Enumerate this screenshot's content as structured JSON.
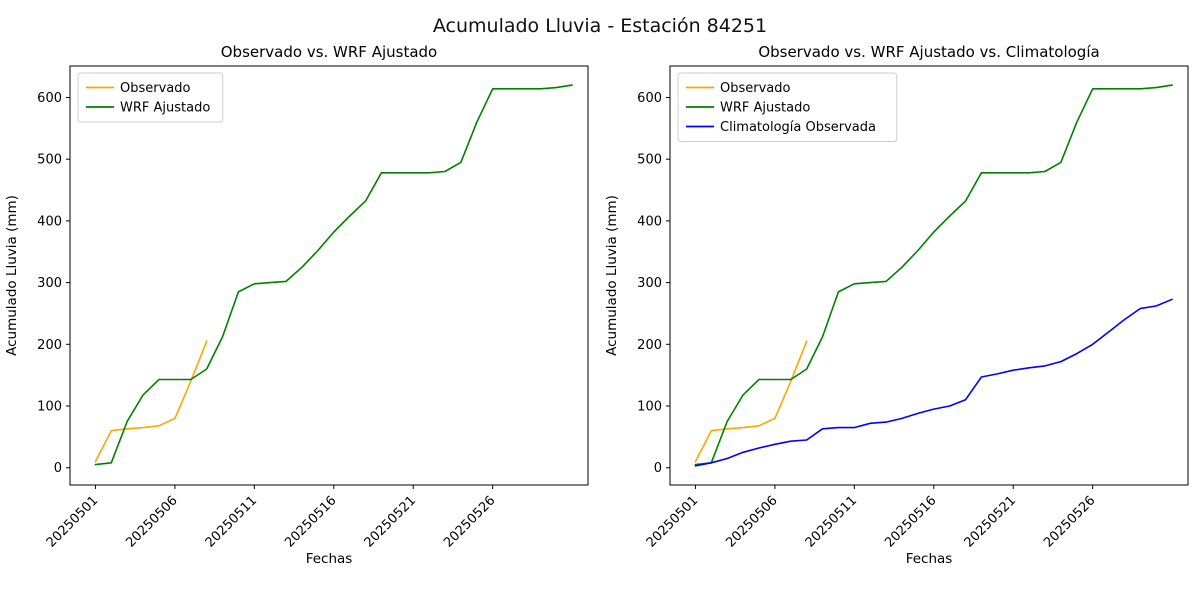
{
  "figure": {
    "title": "Acumulado Lluvia - Estación 84251",
    "background": "#ffffff",
    "text_color": "#000000"
  },
  "chart_data": [
    {
      "type": "line",
      "title": "Observado vs. WRF Ajustado",
      "xlabel": "Fechas",
      "ylabel": "Acumulado Lluvia (mm)",
      "xlim": [
        -0.6,
        32.0
      ],
      "ylim": [
        -28,
        651
      ],
      "yticks": [
        0,
        100,
        200,
        300,
        400,
        500,
        600
      ],
      "xticks": [
        "20250501",
        "20250506",
        "20250511",
        "20250516",
        "20250521",
        "20250526"
      ],
      "grid": false,
      "legend_position": "upper-left",
      "series": [
        {
          "name": "Observado",
          "color": "#ffa500",
          "dates": [
            "20250501",
            "20250502",
            "20250503",
            "20250504",
            "20250505",
            "20250506",
            "20250507",
            "20250508"
          ],
          "values": [
            10,
            60,
            63,
            65,
            68,
            80,
            140,
            205
          ]
        },
        {
          "name": "WRF Ajustado",
          "color": "#008000",
          "dates": [
            "20250501",
            "20250502",
            "20250503",
            "20250504",
            "20250505",
            "20250506",
            "20250507",
            "20250508",
            "20250509",
            "20250510",
            "20250511",
            "20250512",
            "20250513",
            "20250514",
            "20250515",
            "20250516",
            "20250517",
            "20250518",
            "20250519",
            "20250520",
            "20250521",
            "20250522",
            "20250523",
            "20250524",
            "20250525",
            "20250526",
            "20250527",
            "20250528",
            "20250529",
            "20250530",
            "20250531"
          ],
          "values": [
            5,
            8,
            75,
            118,
            143,
            143,
            143,
            160,
            212,
            285,
            298,
            300,
            302,
            325,
            352,
            382,
            408,
            432,
            478,
            478,
            478,
            478,
            480,
            495,
            560,
            614,
            614,
            614,
            614,
            616,
            620
          ]
        }
      ]
    },
    {
      "type": "line",
      "title": "Observado vs. WRF Ajustado vs. Climatología",
      "xlabel": "Fechas",
      "ylabel": "Acumulado Lluvia (mm)",
      "xlim": [
        -0.6,
        32.0
      ],
      "ylim": [
        -28,
        651
      ],
      "yticks": [
        0,
        100,
        200,
        300,
        400,
        500,
        600
      ],
      "xticks": [
        "20250501",
        "20250506",
        "20250511",
        "20250516",
        "20250521",
        "20250526"
      ],
      "grid": false,
      "legend_position": "upper-left",
      "series": [
        {
          "name": "Observado",
          "color": "#ffa500",
          "dates": [
            "20250501",
            "20250502",
            "20250503",
            "20250504",
            "20250505",
            "20250506",
            "20250507",
            "20250508"
          ],
          "values": [
            10,
            60,
            63,
            65,
            68,
            80,
            140,
            205
          ]
        },
        {
          "name": "WRF Ajustado",
          "color": "#008000",
          "dates": [
            "20250501",
            "20250502",
            "20250503",
            "20250504",
            "20250505",
            "20250506",
            "20250507",
            "20250508",
            "20250509",
            "20250510",
            "20250511",
            "20250512",
            "20250513",
            "20250514",
            "20250515",
            "20250516",
            "20250517",
            "20250518",
            "20250519",
            "20250520",
            "20250521",
            "20250522",
            "20250523",
            "20250524",
            "20250525",
            "20250526",
            "20250527",
            "20250528",
            "20250529",
            "20250530",
            "20250531"
          ],
          "values": [
            5,
            8,
            75,
            118,
            143,
            143,
            143,
            160,
            212,
            285,
            298,
            300,
            302,
            325,
            352,
            382,
            408,
            432,
            478,
            478,
            478,
            478,
            480,
            495,
            560,
            614,
            614,
            614,
            614,
            616,
            620
          ]
        },
        {
          "name": "Climatología Observada",
          "color": "#0000ff",
          "dates": [
            "20250501",
            "20250502",
            "20250503",
            "20250504",
            "20250505",
            "20250506",
            "20250507",
            "20250508",
            "20250509",
            "20250510",
            "20250511",
            "20250512",
            "20250513",
            "20250514",
            "20250515",
            "20250516",
            "20250517",
            "20250518",
            "20250519",
            "20250520",
            "20250521",
            "20250522",
            "20250523",
            "20250524",
            "20250525",
            "20250526",
            "20250527",
            "20250528",
            "20250529",
            "20250530",
            "20250531"
          ],
          "values": [
            3,
            8,
            15,
            25,
            32,
            38,
            43,
            45,
            63,
            65,
            65,
            72,
            74,
            80,
            88,
            95,
            100,
            110,
            147,
            152,
            158,
            162,
            165,
            172,
            185,
            200,
            220,
            240,
            258,
            262,
            273
          ]
        }
      ]
    }
  ]
}
